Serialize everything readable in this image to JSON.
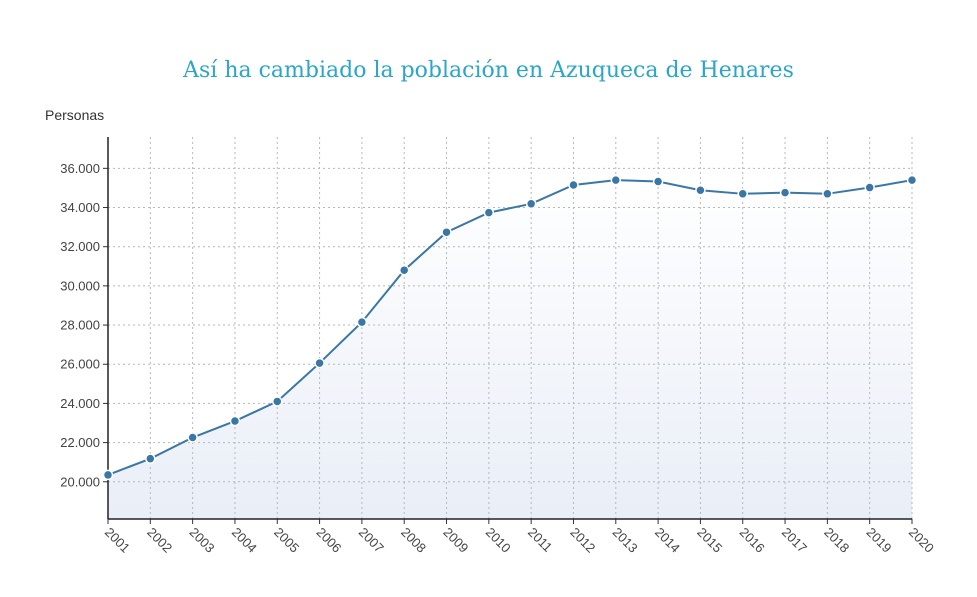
{
  "chart_data": {
    "type": "area",
    "title": "Así ha cambiado la población en Azuqueca de Henares",
    "ylabel": "Personas",
    "xlabel": "",
    "x": [
      "2001",
      "2002",
      "2003",
      "2004",
      "2005",
      "2006",
      "2007",
      "2008",
      "2009",
      "2010",
      "2011",
      "2012",
      "2013",
      "2014",
      "2015",
      "2016",
      "2017",
      "2018",
      "2019",
      "2020"
    ],
    "series": [
      {
        "values": [
          20350,
          21180,
          22260,
          23100,
          24100,
          26060,
          28150,
          30800,
          32740,
          33740,
          34190,
          35150,
          35400,
          35330,
          34880,
          34700,
          34760,
          34700,
          35020,
          35400
        ]
      }
    ],
    "ylim": [
      18100,
      37600
    ],
    "yticks": [
      20000,
      22000,
      24000,
      26000,
      28000,
      30000,
      32000,
      34000,
      36000
    ],
    "ytick_labels": [
      "20.000",
      "22.000",
      "24.000",
      "26.000",
      "28.000",
      "30.000",
      "32.000",
      "34.000",
      "36.000"
    ],
    "grid": true,
    "line_color": "#3a76a6",
    "fill_top_color": "#ffffff",
    "fill_bottom_color": "#e9eef7",
    "title_color": "#29a6c8"
  }
}
